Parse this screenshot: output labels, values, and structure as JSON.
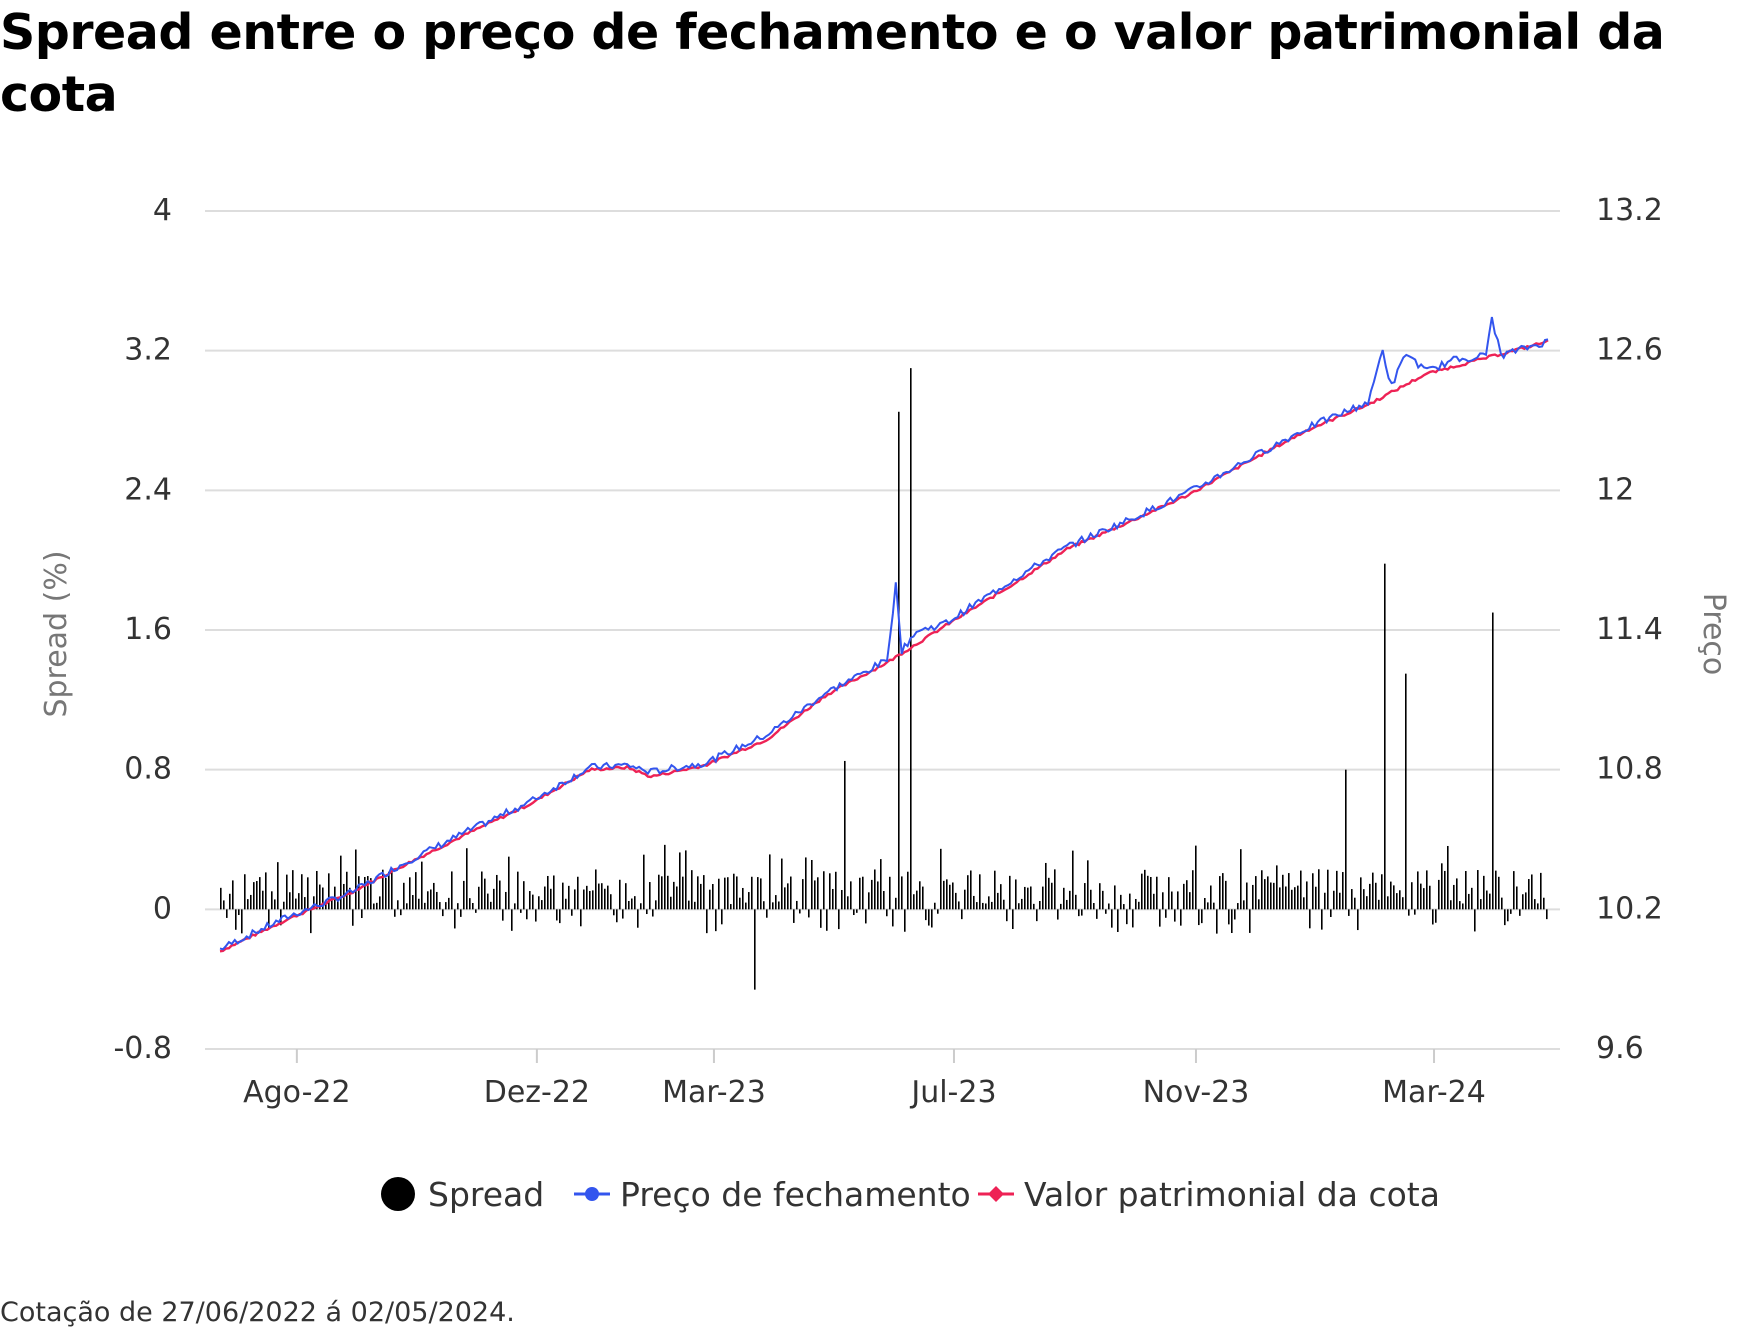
{
  "title": "Spread entre o preço de fechamento e o valor patrimonial da cota",
  "caption": "Cotação de 27/06/2022 á 02/05/2024.",
  "chart_data": {
    "type": "bar+line",
    "title": "Spread entre o preço de fechamento e o valor patrimonial da cota",
    "date_range": [
      "2022-06-27",
      "2024-05-02"
    ],
    "x_ticks": [
      "Ago-22",
      "Dez-22",
      "Mar-23",
      "Jul-23",
      "Nov-23",
      "Mar-24"
    ],
    "y_left": {
      "label": "Spread (%)",
      "ticks": [
        "4",
        "3.2",
        "2.4",
        "1.6",
        "0.8",
        "0",
        "-0.8"
      ],
      "range": [
        -0.8,
        4
      ]
    },
    "y_right": {
      "label": "Preço",
      "ticks": [
        "13.2",
        "12.6",
        "12",
        "11.4",
        "10.8",
        "10.2",
        "9.6"
      ],
      "range": [
        9.6,
        13.2
      ]
    },
    "grid": "horizontal",
    "legend_position": "bottom",
    "colors": {
      "spread": "#000000",
      "preco": "#3355ee",
      "vpc": "#ee2255"
    },
    "legend": [
      {
        "key": "spread",
        "label": "Spread",
        "color": "#000000",
        "marker": "circle"
      },
      {
        "key": "preco",
        "label": "Preço de fechamento",
        "color": "#3355ee",
        "marker": "circle-line"
      },
      {
        "key": "vpc",
        "label": "Valor patrimonial da cota",
        "color": "#ee2255",
        "marker": "diamond-line"
      }
    ],
    "series": [
      {
        "name": "Preço de fechamento",
        "points": [
          [
            "2022-06-27",
            10.03
          ],
          [
            "2022-08-01",
            10.17
          ],
          [
            "2022-09-01",
            10.27
          ],
          [
            "2022-10-01",
            10.41
          ],
          [
            "2022-11-01",
            10.54
          ],
          [
            "2022-12-01",
            10.66
          ],
          [
            "2023-01-01",
            10.81
          ],
          [
            "2023-01-20",
            10.82
          ],
          [
            "2023-02-01",
            10.79
          ],
          [
            "2023-03-01",
            10.83
          ],
          [
            "2023-04-01",
            10.95
          ],
          [
            "2023-05-01",
            11.13
          ],
          [
            "2023-06-01",
            11.27
          ],
          [
            "2023-06-06",
            11.63
          ],
          [
            "2023-06-08",
            11.3
          ],
          [
            "2023-06-15",
            11.39
          ],
          [
            "2023-07-01",
            11.43
          ],
          [
            "2023-08-01",
            11.6
          ],
          [
            "2023-09-01",
            11.76
          ],
          [
            "2023-10-01",
            11.87
          ],
          [
            "2023-11-01",
            11.99
          ],
          [
            "2023-12-01",
            12.13
          ],
          [
            "2024-01-01",
            12.27
          ],
          [
            "2024-02-01",
            12.38
          ],
          [
            "2024-02-08",
            12.61
          ],
          [
            "2024-02-12",
            12.44
          ],
          [
            "2024-02-20",
            12.59
          ],
          [
            "2024-03-01",
            12.51
          ],
          [
            "2024-03-15",
            12.56
          ],
          [
            "2024-04-01",
            12.58
          ],
          [
            "2024-04-03",
            12.76
          ],
          [
            "2024-04-08",
            12.58
          ],
          [
            "2024-05-02",
            12.64
          ]
        ]
      },
      {
        "name": "Valor patrimonial da cota",
        "points": [
          [
            "2022-06-27",
            10.02
          ],
          [
            "2022-08-01",
            10.16
          ],
          [
            "2022-09-01",
            10.27
          ],
          [
            "2022-10-01",
            10.4
          ],
          [
            "2022-11-01",
            10.53
          ],
          [
            "2022-12-01",
            10.65
          ],
          [
            "2023-01-01",
            10.8
          ],
          [
            "2023-01-20",
            10.81
          ],
          [
            "2023-02-01",
            10.77
          ],
          [
            "2023-03-01",
            10.82
          ],
          [
            "2023-04-01",
            10.93
          ],
          [
            "2023-05-01",
            11.12
          ],
          [
            "2023-06-01",
            11.26
          ],
          [
            "2023-07-01",
            11.42
          ],
          [
            "2023-08-01",
            11.58
          ],
          [
            "2023-09-01",
            11.75
          ],
          [
            "2023-10-01",
            11.86
          ],
          [
            "2023-11-01",
            11.98
          ],
          [
            "2023-12-01",
            12.12
          ],
          [
            "2024-01-01",
            12.26
          ],
          [
            "2024-02-01",
            12.37
          ],
          [
            "2024-03-01",
            12.5
          ],
          [
            "2024-04-01",
            12.57
          ],
          [
            "2024-05-02",
            12.64
          ]
        ]
      },
      {
        "name": "Spread",
        "notable_values": [
          [
            "2023-05-10",
            0.85
          ],
          [
            "2023-06-06",
            2.85
          ],
          [
            "2023-06-12",
            3.1
          ],
          [
            "2023-03-25",
            -0.46
          ],
          [
            "2024-01-20",
            0.8
          ],
          [
            "2024-02-08",
            1.98
          ],
          [
            "2024-02-20",
            1.35
          ],
          [
            "2024-04-03",
            1.7
          ]
        ],
        "typical_range": [
          -0.2,
          0.3
        ]
      }
    ]
  }
}
